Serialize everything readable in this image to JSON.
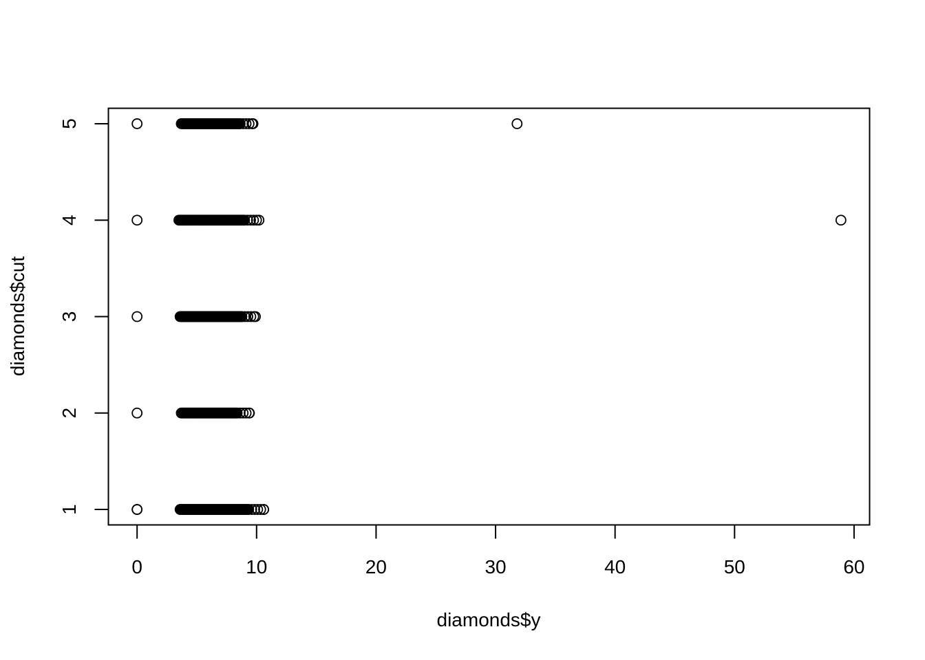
{
  "chart_data": {
    "type": "scatter",
    "xlabel": "diamonds$y",
    "ylabel": "diamonds$cut",
    "xlim": [
      -2.4,
      61.3
    ],
    "ylim": [
      0.84,
      5.16
    ],
    "x_ticks": [
      0,
      10,
      20,
      30,
      40,
      50,
      60
    ],
    "y_ticks": [
      1,
      2,
      3,
      4,
      5
    ],
    "grid": false,
    "marker": "open-circle",
    "colors": {
      "stroke": "#000000",
      "background": "#ffffff"
    },
    "series": [
      {
        "x": [
          0,
          0,
          31.8,
          0,
          58.9,
          0,
          0,
          0
        ],
        "y": [
          5,
          4,
          5,
          3,
          4,
          2,
          1,
          1
        ]
      }
    ],
    "bands": [
      {
        "y": 5,
        "x_from": 3.7,
        "x_to": 9.7
      },
      {
        "y": 4,
        "x_from": 3.5,
        "x_to": 10.2
      },
      {
        "y": 3,
        "x_from": 3.6,
        "x_to": 9.9
      },
      {
        "y": 2,
        "x_from": 3.7,
        "x_to": 9.4
      },
      {
        "y": 1,
        "x_from": 3.6,
        "x_to": 10.6
      }
    ]
  }
}
